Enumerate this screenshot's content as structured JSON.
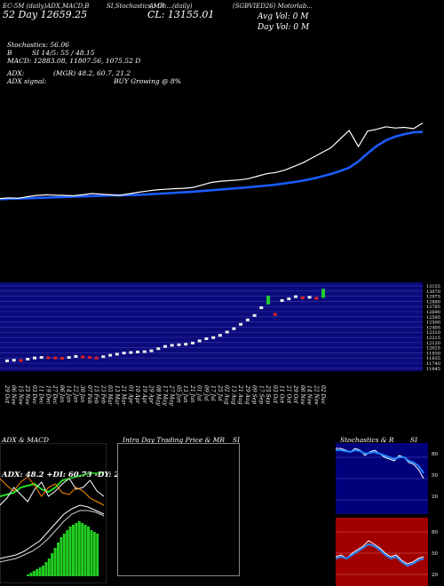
{
  "header": {
    "left_line1": "EC-5M (daily)ADX,MACD,B",
    "left_line2": "52 Day  12659.25",
    "mid_line1": "SI,Stochastics,MR",
    "mid_line2": "Al Ch...(daily)",
    "close": "CL: 13155.01",
    "right_title": "(SGBVIED26) Motorlab...",
    "avg_vol": "Avg Vol: 0   M",
    "day_vol": "Day Vol: 0   M"
  },
  "indicators": {
    "stochastics": "Stochastics: 56.06",
    "si": "SI 14/5: 55 / 48.15",
    "macd": "MACD: 12883.08,  11807.56,  1075.52  D",
    "adx": "ADX:",
    "mgr": "(MGR) 48.2,  60.7,  21.2",
    "adx_signal": "ADX  signal:",
    "buy": "BUY Growing @ 8%"
  },
  "dates": [
    "29 Oct",
    "06 Nov",
    "15 Nov",
    "25 Nov",
    "03 Dec",
    "11 Dec",
    "19 Dec",
    "27 Dec",
    "06 Jan",
    "14 Jan",
    "22 Jan",
    "30 Jan",
    "07 Feb",
    "15 Feb",
    "23 Feb",
    "03 Mar",
    "13 Mar",
    "21 Mar",
    "01 Apr",
    "10 Apr",
    "19 Apr",
    "29 Apr",
    "08 May",
    "17 May",
    "27 May",
    "05 Jun",
    "13 Jun",
    "21 Jun",
    "01 Jul",
    "09 Jul",
    "17 Jul",
    "25 Jul",
    "02 Aug",
    "13 Aug",
    "21 Aug",
    "29 Aug",
    "09 Sep",
    "17 Sep",
    "25 Sep",
    "03 Oct",
    "11 Oct",
    "21 Oct",
    "29 Oct",
    "06 Nov",
    "14 Nov",
    "22 Nov",
    "02 Dec"
  ],
  "price_axis": [
    "13155",
    "13070",
    "12975",
    "12880",
    "12785",
    "12690",
    "12595",
    "12500",
    "12405",
    "12310",
    "12215",
    "12120",
    "12025",
    "11930",
    "11835",
    "11740",
    "11645"
  ],
  "panels": {
    "adx_title": "ADX  & MACD",
    "adx_vals": "ADX: 48.2   +DI: 60.73   -DY: 21.23",
    "intraday_title": "Intra  Day Trading Price  & MR",
    "intraday_si": "SI",
    "stoch_title": "Stochastics & R",
    "stoch_si": "SI",
    "stoch_ticks": [
      "80",
      "50",
      "20"
    ],
    "rsi_ticks": [
      "80",
      "50",
      "20"
    ]
  },
  "colors": {
    "bg": "#000000",
    "price_line": "#ffffff",
    "ma_line": "#1a5cff",
    "band": "#0a0a7a",
    "up": "#22cc33",
    "down": "#dd2222",
    "rsi_bg": "#a00000",
    "stoch_bg": "#00007a"
  },
  "chart_data": {
    "type": "line",
    "x": [
      "29 Oct",
      "06 Nov",
      "15 Nov",
      "25 Nov",
      "03 Dec",
      "11 Dec",
      "19 Dec",
      "27 Dec",
      "06 Jan",
      "14 Jan",
      "22 Jan",
      "30 Jan",
      "07 Feb",
      "15 Feb",
      "23 Feb",
      "03 Mar",
      "13 Mar",
      "21 Mar",
      "01 Apr",
      "10 Apr",
      "19 Apr",
      "29 Apr",
      "08 May",
      "17 May",
      "27 May",
      "05 Jun",
      "13 Jun",
      "21 Jun",
      "01 Jul",
      "09 Jul",
      "17 Jul",
      "25 Jul",
      "02 Aug",
      "13 Aug",
      "21 Aug",
      "29 Aug",
      "09 Sep",
      "17 Sep",
      "25 Sep",
      "03 Oct",
      "11 Oct",
      "21 Oct",
      "29 Oct",
      "06 Nov",
      "14 Nov",
      "22 Nov",
      "02 Dec"
    ],
    "series": [
      {
        "values": [
          11800,
          11810,
          11805,
          11830,
          11850,
          11860,
          11855,
          11850,
          11845,
          11860,
          11880,
          11870,
          11860,
          11850,
          11875,
          11900,
          11920,
          11940,
          11950,
          11960,
          11965,
          11980,
          12020,
          12060,
          12080,
          12090,
          12100,
          12120,
          12160,
          12200,
          12220,
          12260,
          12320,
          12380,
          12460,
          12540,
          12620,
          12760,
          12900,
          12640,
          12890,
          12920,
          12960,
          12940,
          12950,
          12930,
          13020
        ]
      },
      {
        "values": [
          11790,
          11795,
          11800,
          11805,
          11810,
          11815,
          11820,
          11825,
          11830,
          11835,
          11840,
          11845,
          11850,
          11852,
          11855,
          11860,
          11868,
          11876,
          11884,
          11892,
          11900,
          11910,
          11922,
          11934,
          11946,
          11958,
          11970,
          11982,
          11996,
          12010,
          12026,
          12044,
          12066,
          12090,
          12120,
          12156,
          12196,
          12244,
          12300,
          12400,
          12530,
          12650,
          12740,
          12800,
          12840,
          12870,
          12880
        ]
      }
    ],
    "ylim": [
      11645,
      13155
    ]
  }
}
